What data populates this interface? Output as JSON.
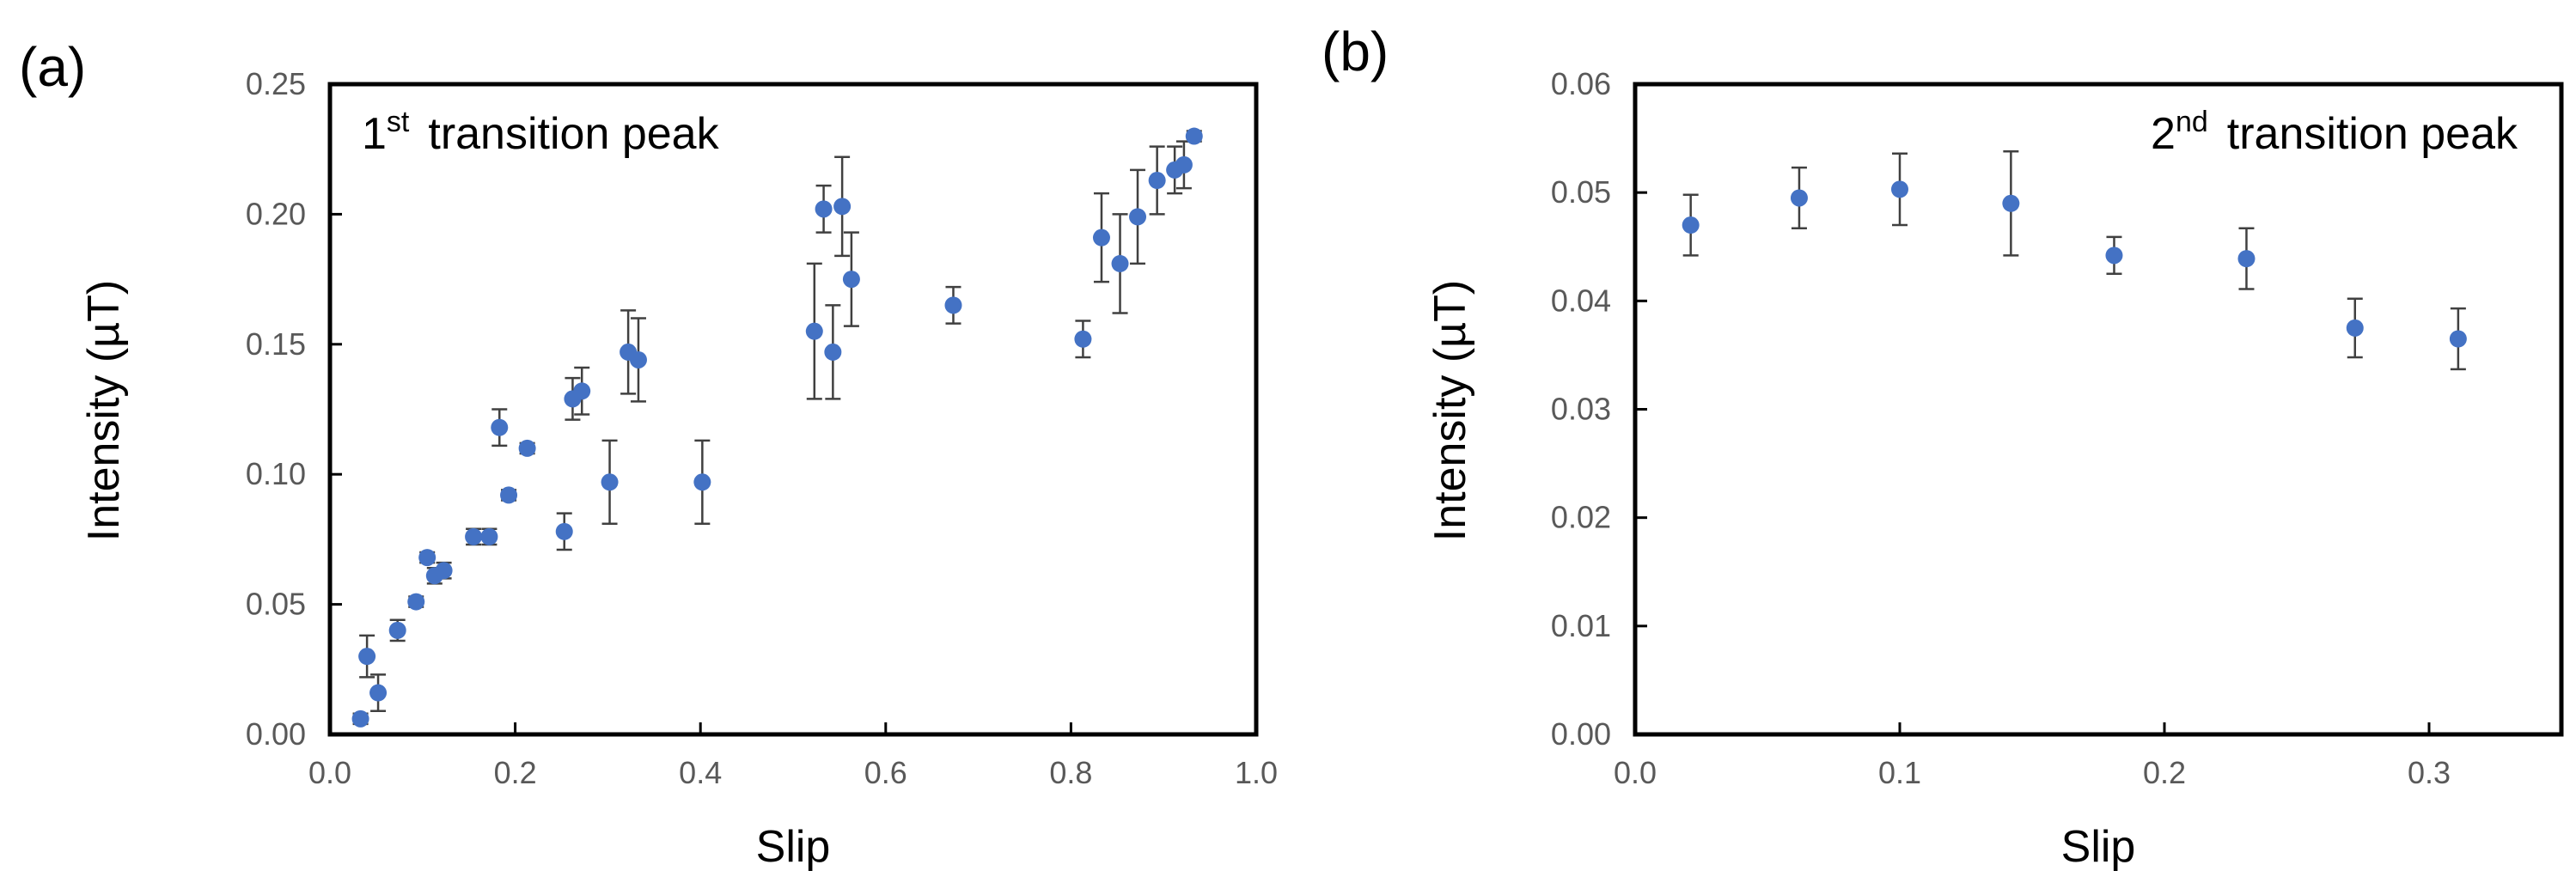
{
  "figure": {
    "panel_labels": [
      "(a)",
      "(b)"
    ]
  },
  "chart_data": [
    {
      "type": "scatter",
      "panel_label": "(a)",
      "annotation": {
        "main": "1",
        "sup": "st",
        "rest": "transition peak"
      },
      "xlabel": "Slip",
      "ylabel": "Intensity (µT)",
      "xlim": [
        0.0,
        1.0
      ],
      "ylim": [
        0.0,
        0.25
      ],
      "xticks": [
        0.0,
        0.2,
        0.4,
        0.6,
        0.8,
        1.0
      ],
      "yticks": [
        0.0,
        0.05,
        0.1,
        0.15,
        0.2,
        0.25
      ],
      "xtick_labels": [
        "0.0",
        "0.2",
        "0.4",
        "0.6",
        "0.8",
        "1.0"
      ],
      "ytick_labels": [
        "0.00",
        "0.05",
        "0.10",
        "0.15",
        "0.20",
        "0.25"
      ],
      "marker_color": "#4472C4",
      "errorbar_color": "#404040",
      "points": [
        {
          "x": 0.033,
          "y": 0.006,
          "err": 0.002
        },
        {
          "x": 0.04,
          "y": 0.03,
          "err": 0.008
        },
        {
          "x": 0.052,
          "y": 0.016,
          "err": 0.007
        },
        {
          "x": 0.073,
          "y": 0.04,
          "err": 0.004
        },
        {
          "x": 0.093,
          "y": 0.051,
          "err": 0.002
        },
        {
          "x": 0.105,
          "y": 0.068,
          "err": 0.002
        },
        {
          "x": 0.113,
          "y": 0.061,
          "err": 0.003
        },
        {
          "x": 0.123,
          "y": 0.063,
          "err": 0.003
        },
        {
          "x": 0.155,
          "y": 0.076,
          "err": 0.003
        },
        {
          "x": 0.172,
          "y": 0.076,
          "err": 0.003
        },
        {
          "x": 0.183,
          "y": 0.118,
          "err": 0.007
        },
        {
          "x": 0.193,
          "y": 0.092,
          "err": 0.002
        },
        {
          "x": 0.213,
          "y": 0.11,
          "err": 0.002
        },
        {
          "x": 0.253,
          "y": 0.078,
          "err": 0.007
        },
        {
          "x": 0.262,
          "y": 0.129,
          "err": 0.008
        },
        {
          "x": 0.272,
          "y": 0.132,
          "err": 0.009
        },
        {
          "x": 0.302,
          "y": 0.097,
          "err": 0.016
        },
        {
          "x": 0.322,
          "y": 0.147,
          "err": 0.016
        },
        {
          "x": 0.333,
          "y": 0.144,
          "err": 0.016
        },
        {
          "x": 0.402,
          "y": 0.097,
          "err": 0.016
        },
        {
          "x": 0.523,
          "y": 0.155,
          "err": 0.026
        },
        {
          "x": 0.533,
          "y": 0.202,
          "err": 0.009
        },
        {
          "x": 0.543,
          "y": 0.147,
          "err": 0.018
        },
        {
          "x": 0.553,
          "y": 0.203,
          "err": 0.019
        },
        {
          "x": 0.563,
          "y": 0.175,
          "err": 0.018
        },
        {
          "x": 0.673,
          "y": 0.165,
          "err": 0.007
        },
        {
          "x": 0.813,
          "y": 0.152,
          "err": 0.007
        },
        {
          "x": 0.833,
          "y": 0.191,
          "err": 0.017
        },
        {
          "x": 0.853,
          "y": 0.181,
          "err": 0.019
        },
        {
          "x": 0.872,
          "y": 0.199,
          "err": 0.018
        },
        {
          "x": 0.893,
          "y": 0.213,
          "err": 0.013
        },
        {
          "x": 0.912,
          "y": 0.217,
          "err": 0.009
        },
        {
          "x": 0.922,
          "y": 0.219,
          "err": 0.009
        },
        {
          "x": 0.933,
          "y": 0.23,
          "err": 0.002
        }
      ]
    },
    {
      "type": "scatter",
      "panel_label": "(b)",
      "annotation": {
        "main": "2",
        "sup": "nd",
        "rest": "transition peak"
      },
      "xlabel": "Slip",
      "ylabel": "Intensity (µT)",
      "xlim": [
        0.0,
        0.35
      ],
      "ylim": [
        0.0,
        0.06
      ],
      "xticks": [
        0.0,
        0.1,
        0.2,
        0.3
      ],
      "yticks": [
        0.0,
        0.01,
        0.02,
        0.03,
        0.04,
        0.05,
        0.06
      ],
      "xtick_labels": [
        "0.0",
        "0.1",
        "0.2",
        "0.3"
      ],
      "ytick_labels": [
        "0.00",
        "0.01",
        "0.02",
        "0.03",
        "0.04",
        "0.05",
        "0.06"
      ],
      "marker_color": "#4472C4",
      "errorbar_color": "#404040",
      "points": [
        {
          "x": 0.021,
          "y": 0.047,
          "err": 0.0028
        },
        {
          "x": 0.062,
          "y": 0.0495,
          "err": 0.0028
        },
        {
          "x": 0.1,
          "y": 0.0503,
          "err": 0.0033
        },
        {
          "x": 0.142,
          "y": 0.049,
          "err": 0.0048
        },
        {
          "x": 0.181,
          "y": 0.0442,
          "err": 0.0017
        },
        {
          "x": 0.231,
          "y": 0.0439,
          "err": 0.0028
        },
        {
          "x": 0.272,
          "y": 0.0375,
          "err": 0.0027
        },
        {
          "x": 0.311,
          "y": 0.0365,
          "err": 0.0028
        }
      ]
    }
  ]
}
